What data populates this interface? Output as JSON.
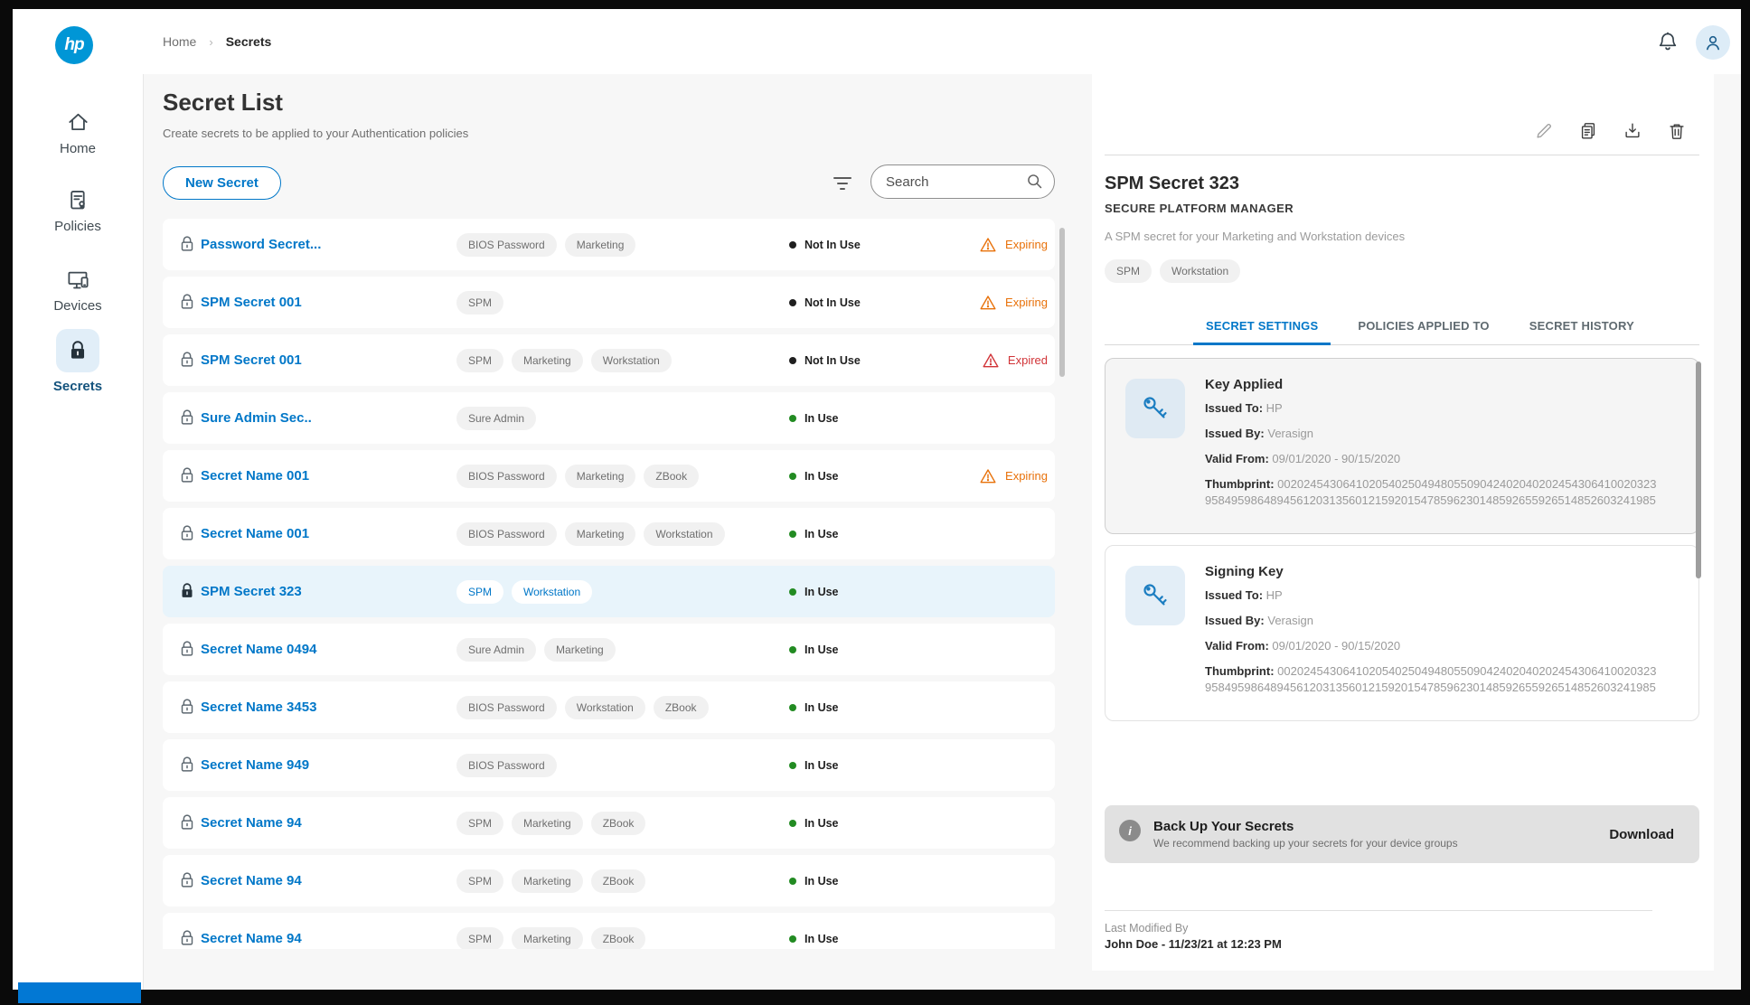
{
  "topbar": {
    "breadcrumb": [
      "Home",
      "Secrets"
    ]
  },
  "sidebar": {
    "items": [
      {
        "label": "Home",
        "icon": "home-icon"
      },
      {
        "label": "Policies",
        "icon": "policies-icon"
      },
      {
        "label": "Devices",
        "icon": "devices-icon"
      },
      {
        "label": "Secrets",
        "icon": "lock-icon",
        "active": true
      }
    ]
  },
  "list": {
    "title": "Secret List",
    "subtitle": "Create secrets to be applied to your Authentication policies",
    "new_secret_label": "New Secret",
    "search_placeholder": "Search",
    "rows": [
      {
        "name": "Password Secret...",
        "tags": [
          "BIOS Password",
          "Marketing"
        ],
        "status": "Not In Use",
        "badge": "Expiring"
      },
      {
        "name": "SPM Secret 001",
        "tags": [
          "SPM"
        ],
        "status": "Not In Use",
        "badge": "Expiring"
      },
      {
        "name": "SPM Secret 001",
        "tags": [
          "SPM",
          "Marketing",
          "Workstation"
        ],
        "status": "Not In Use",
        "badge": "Expired"
      },
      {
        "name": "Sure Admin Sec..",
        "tags": [
          "Sure Admin"
        ],
        "status": "In Use"
      },
      {
        "name": "Secret Name 001",
        "tags": [
          "BIOS Password",
          "Marketing",
          "ZBook"
        ],
        "status": "In Use",
        "badge": "Expiring"
      },
      {
        "name": "Secret Name 001",
        "tags": [
          "BIOS Password",
          "Marketing",
          "Workstation"
        ],
        "status": "In Use"
      },
      {
        "name": "SPM Secret 323",
        "tags": [
          "SPM",
          "Workstation"
        ],
        "status": "In Use",
        "selected": true
      },
      {
        "name": "Secret Name 0494",
        "tags": [
          "Sure Admin",
          "Marketing"
        ],
        "status": "In Use"
      },
      {
        "name": "Secret Name 3453",
        "tags": [
          "BIOS Password",
          "Workstation",
          "ZBook"
        ],
        "status": "In Use"
      },
      {
        "name": "Secret Name 949",
        "tags": [
          "BIOS Password"
        ],
        "status": "In Use"
      },
      {
        "name": "Secret Name 94",
        "tags": [
          "SPM",
          "Marketing",
          "ZBook"
        ],
        "status": "In Use"
      },
      {
        "name": "Secret Name 94",
        "tags": [
          "SPM",
          "Marketing",
          "ZBook"
        ],
        "status": "In Use"
      },
      {
        "name": "Secret Name 94",
        "tags": [
          "SPM",
          "Marketing",
          "ZBook"
        ],
        "status": "In Use"
      }
    ]
  },
  "detail": {
    "actions": [
      {
        "icon": "pencil-icon",
        "name": "edit"
      },
      {
        "icon": "copy-icon",
        "name": "duplicate"
      },
      {
        "icon": "download-icon",
        "name": "download"
      },
      {
        "icon": "trash-icon",
        "name": "delete"
      }
    ],
    "title": "SPM Secret 323",
    "type_label": "SECURE PLATFORM MANAGER",
    "description": "A SPM secret for your Marketing and Workstation devices",
    "tags": [
      "SPM",
      "Workstation"
    ],
    "tabs": [
      "SECRET SETTINGS",
      "POLICIES APPLIED TO",
      "SECRET HISTORY"
    ],
    "active_tab": "SECRET SETTINGS",
    "cards": [
      {
        "title": "Key Applied",
        "fields": [
          {
            "label": "Issued To:",
            "value": "HP"
          },
          {
            "label": "Issued By:",
            "value": "Verasign"
          },
          {
            "label": "Valid From:",
            "value": "09/01/2020 - 90/15/2020"
          },
          {
            "label": "Thumbprint:",
            "value_lines": [
              "0020245430641020540250494805509042402040202454306410020323",
              "958495986489456120313560121592015478596230148592655926514852603241985"
            ]
          }
        ]
      },
      {
        "title": "Signing Key",
        "fields": [
          {
            "label": "Issued To:",
            "value": "HP"
          },
          {
            "label": "Issued By:",
            "value": "Verasign"
          },
          {
            "label": "Valid From:",
            "value": "09/01/2020 - 90/15/2020"
          },
          {
            "label": "Thumbprint:",
            "value_lines": [
              "0020245430641020540250494805509042402040202454306410020323",
              "958495986489456120313560121592015478596230148592655926514852603241985"
            ]
          }
        ]
      }
    ],
    "backup": {
      "title": "Back Up Your Secrets",
      "subtitle": "We recommend backing up your secrets for your device groups",
      "action_label": "Download"
    },
    "last_modified_label": "Last Modified By",
    "last_modified_value": "John Doe - 11/23/21 at 12:23 PM"
  },
  "colors": {
    "accent": "#0077c8",
    "in_use": "#228b22",
    "not_in_use": "#1f1f1f",
    "expiring": "#e8710a",
    "expired": "#d13438"
  }
}
